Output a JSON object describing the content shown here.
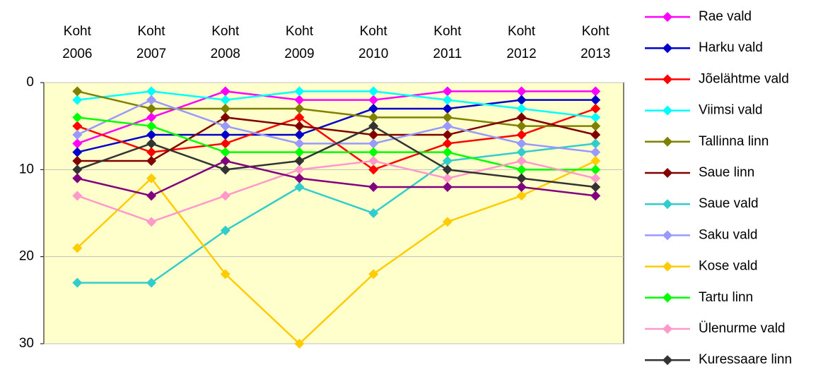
{
  "chart_data": {
    "type": "line",
    "categories": [
      "Koht 2006",
      "Koht 2007",
      "Koht 2008",
      "Koht 2009",
      "Koht 2010",
      "Koht 2011",
      "Koht 2012",
      "Koht 2013"
    ],
    "ylim": [
      0,
      30
    ],
    "yticks": [
      0,
      10,
      20,
      30
    ],
    "y_inverted": true,
    "grid": true,
    "legend": "right",
    "plot_background": "#ffffcc",
    "series": [
      {
        "name": "Rae vald",
        "color": "#ff00ff",
        "values": [
          7,
          4,
          1,
          2,
          2,
          1,
          1,
          1
        ]
      },
      {
        "name": "Harku vald",
        "color": "#0000cc",
        "values": [
          8,
          6,
          6,
          6,
          3,
          3,
          2,
          2
        ]
      },
      {
        "name": "Jõelähtme vald",
        "color": "#ff0000",
        "values": [
          5,
          8,
          7,
          4,
          10,
          7,
          6,
          3
        ]
      },
      {
        "name": "Viimsi vald",
        "color": "#00ffff",
        "values": [
          2,
          1,
          2,
          1,
          1,
          2,
          3,
          4
        ]
      },
      {
        "name": "Tallinna linn",
        "color": "#808000",
        "values": [
          1,
          3,
          3,
          3,
          4,
          4,
          5,
          5
        ]
      },
      {
        "name": "Saue linn",
        "color": "#800000",
        "values": [
          9,
          9,
          4,
          5,
          6,
          6,
          4,
          6
        ]
      },
      {
        "name": "Saue vald",
        "color": "#33cccc",
        "values": [
          23,
          23,
          17,
          12,
          15,
          9,
          8,
          7
        ]
      },
      {
        "name": "Saku vald",
        "color": "#9999ff",
        "values": [
          6,
          2,
          5,
          7,
          7,
          5,
          7,
          8
        ]
      },
      {
        "name": "Kose vald",
        "color": "#ffcc00",
        "values": [
          19,
          11,
          22,
          30,
          22,
          16,
          13,
          9
        ]
      },
      {
        "name": "Tartu linn",
        "color": "#00ff00",
        "values": [
          4,
          5,
          8,
          8,
          8,
          8,
          10,
          10
        ]
      },
      {
        "name": "Ülenurme vald",
        "color": "#ff99cc",
        "values": [
          13,
          16,
          13,
          10,
          9,
          11,
          9,
          11
        ]
      },
      {
        "name": "Kuressaare linn",
        "color": "#333333",
        "values": [
          10,
          7,
          10,
          9,
          5,
          10,
          11,
          12
        ]
      },
      {
        "color": "#800080",
        "values": [
          11,
          13,
          9,
          11,
          12,
          12,
          12,
          13
        ]
      }
    ]
  }
}
